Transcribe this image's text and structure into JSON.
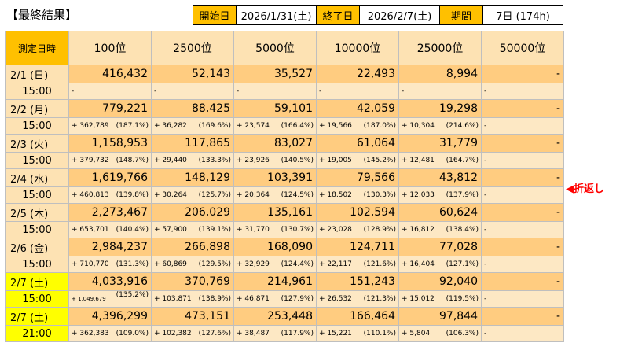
{
  "title": "【最終結果】",
  "header": {
    "start_label": "開始日",
    "start_value": "2026/1/31(土)",
    "end_label": "終了日",
    "end_value": "2026/2/7(土)",
    "period_label": "期間",
    "period_value": "7日 (174h)"
  },
  "table": {
    "date_header": "測定日時",
    "columns": [
      "100位",
      "2500位",
      "5000位",
      "10000位",
      "25000位",
      "50000位"
    ],
    "rows": [
      {
        "date": "2/1 (日)",
        "time": "15:00",
        "highlight": false,
        "values": [
          "416,432",
          "52,143",
          "35,527",
          "22,493",
          "8,994",
          "-"
        ],
        "diffs": [
          [
            "-",
            ""
          ],
          [
            "-",
            ""
          ],
          [
            "-",
            ""
          ],
          [
            "-",
            ""
          ],
          [
            "-",
            ""
          ],
          [
            "-",
            ""
          ]
        ]
      },
      {
        "date": "2/2 (月)",
        "time": "15:00",
        "highlight": false,
        "values": [
          "779,221",
          "88,425",
          "59,101",
          "42,059",
          "19,298",
          "-"
        ],
        "diffs": [
          [
            "+ 362,789",
            "(187.1%)"
          ],
          [
            "+ 36,282",
            "(169.6%)"
          ],
          [
            "+ 23,574",
            "(166.4%)"
          ],
          [
            "+ 19,566",
            "(187.0%)"
          ],
          [
            "+ 10,304",
            "(214.6%)"
          ],
          [
            "-",
            ""
          ]
        ]
      },
      {
        "date": "2/3 (火)",
        "time": "15:00",
        "highlight": false,
        "values": [
          "1,158,953",
          "117,865",
          "83,027",
          "61,064",
          "31,779",
          "-"
        ],
        "diffs": [
          [
            "+ 379,732",
            "(148.7%)"
          ],
          [
            "+ 29,440",
            "(133.3%)"
          ],
          [
            "+ 23,926",
            "(140.5%)"
          ],
          [
            "+ 19,005",
            "(145.2%)"
          ],
          [
            "+ 12,481",
            "(164.7%)"
          ],
          [
            "-",
            ""
          ]
        ]
      },
      {
        "date": "2/4 (水)",
        "time": "15:00",
        "highlight": false,
        "values": [
          "1,619,766",
          "148,129",
          "103,391",
          "79,566",
          "43,812",
          "-"
        ],
        "diffs": [
          [
            "+ 460,813",
            "(139.8%)"
          ],
          [
            "+ 30,264",
            "(125.7%)"
          ],
          [
            "+ 20,364",
            "(124.5%)"
          ],
          [
            "+ 18,502",
            "(130.3%)"
          ],
          [
            "+ 12,033",
            "(137.9%)"
          ],
          [
            "-",
            ""
          ]
        ]
      },
      {
        "date": "2/5 (木)",
        "time": "15:00",
        "highlight": false,
        "values": [
          "2,273,467",
          "206,029",
          "135,161",
          "102,594",
          "60,624",
          "-"
        ],
        "diffs": [
          [
            "+ 653,701",
            "(140.4%)"
          ],
          [
            "+ 57,900",
            "(139.1%)"
          ],
          [
            "+ 31,770",
            "(130.7%)"
          ],
          [
            "+ 23,028",
            "(128.9%)"
          ],
          [
            "+ 16,812",
            "(138.4%)"
          ],
          [
            "-",
            ""
          ]
        ]
      },
      {
        "date": "2/6 (金)",
        "time": "15:00",
        "highlight": false,
        "values": [
          "2,984,237",
          "266,898",
          "168,090",
          "124,711",
          "77,028",
          "-"
        ],
        "diffs": [
          [
            "+ 710,770",
            "(131.3%)"
          ],
          [
            "+ 60,869",
            "(129.5%)"
          ],
          [
            "+ 32,929",
            "(124.4%)"
          ],
          [
            "+ 22,117",
            "(121.6%)"
          ],
          [
            "+ 16,404",
            "(127.1%)"
          ],
          [
            "-",
            ""
          ]
        ]
      },
      {
        "date": "2/7 (土)",
        "time": "15:00",
        "highlight": true,
        "values": [
          "4,033,916",
          "370,769",
          "214,961",
          "151,243",
          "92,040",
          "-"
        ],
        "diffs": [
          [
            "+ 1,049,679",
            "(135.2%)"
          ],
          [
            "+ 103,871",
            "(138.9%)"
          ],
          [
            "+ 46,871",
            "(127.9%)"
          ],
          [
            "+ 26,532",
            "(121.3%)"
          ],
          [
            "+ 15,012",
            "(119.5%)"
          ],
          [
            "-",
            ""
          ]
        ]
      },
      {
        "date": "2/7 (土)",
        "time": "21:00",
        "highlight": true,
        "values": [
          "4,396,299",
          "473,151",
          "253,448",
          "166,464",
          "97,844",
          "-"
        ],
        "diffs": [
          [
            "+ 362,383",
            "(109.0%)"
          ],
          [
            "+ 102,382",
            "(127.6%)"
          ],
          [
            "+ 38,487",
            "(117.9%)"
          ],
          [
            "+ 15,221",
            "(110.1%)"
          ],
          [
            "+ 5,804",
            "(106.3%)"
          ],
          [
            "-",
            ""
          ]
        ]
      }
    ]
  },
  "annotation": "◀折返し",
  "colors": {
    "orange": "#ffc000",
    "yellow": "#ffff00",
    "value_bg": "#ffcc80",
    "diff_bg": "#fde8c4",
    "mark": "#ff0000"
  }
}
